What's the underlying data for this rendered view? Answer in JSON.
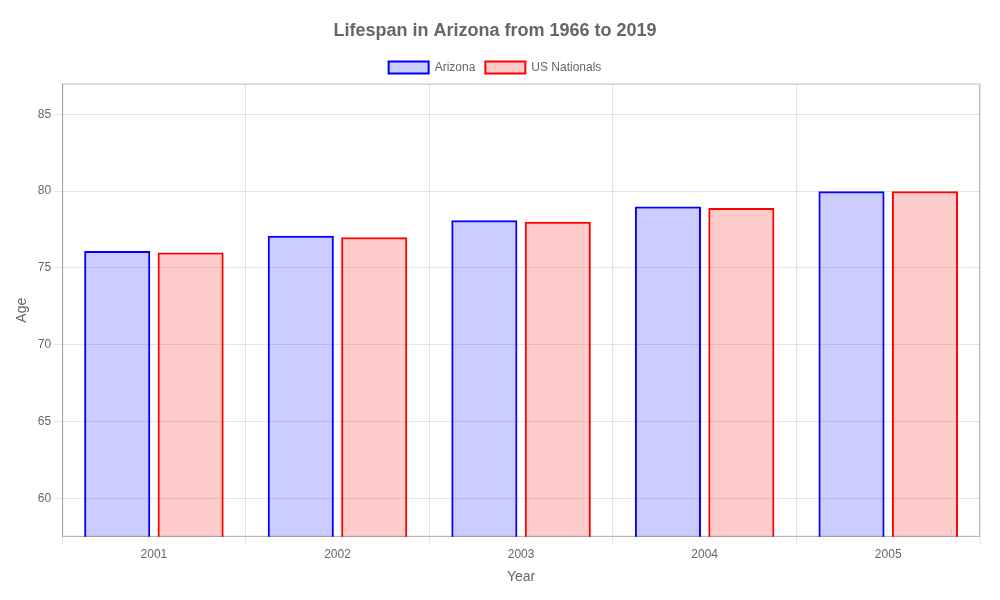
{
  "chart_data": {
    "type": "bar",
    "title": "Lifespan in Arizona from 1966 to 2019",
    "xlabel": "Year",
    "ylabel": "Age",
    "categories": [
      "2001",
      "2002",
      "2003",
      "2004",
      "2005"
    ],
    "series": [
      {
        "name": "Arizona",
        "color": "#0000ff",
        "values": [
          76.1,
          77.1,
          78.1,
          79.0,
          80.0
        ]
      },
      {
        "name": "US Nationals",
        "color": "#ff0000",
        "values": [
          76.0,
          77.0,
          78.0,
          78.9,
          80.0
        ]
      }
    ],
    "ylim": [
      57.5,
      87
    ],
    "yticks": [
      60,
      65,
      70,
      75,
      80,
      85
    ],
    "grid": true,
    "legend": "top"
  }
}
